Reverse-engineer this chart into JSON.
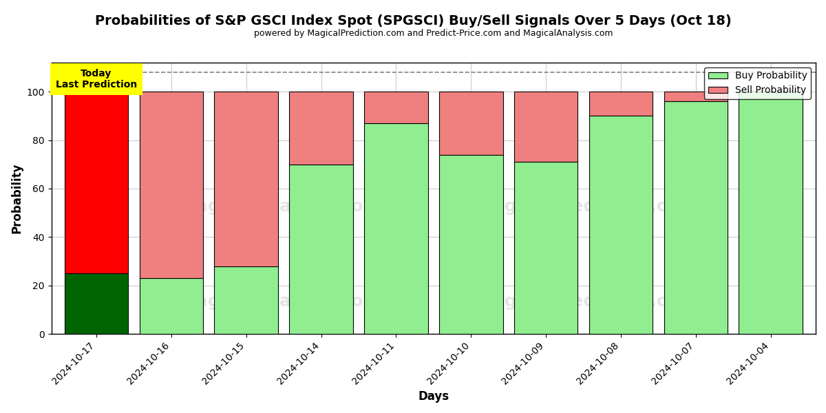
{
  "title": "Probabilities of S&P GSCI Index Spot (SPGSCI) Buy/Sell Signals Over 5 Days (Oct 18)",
  "subtitle": "powered by MagicalPrediction.com and Predict-Price.com and MagicalAnalysis.com",
  "xlabel": "Days",
  "ylabel": "Probability",
  "categories": [
    "2024-10-17",
    "2024-10-16",
    "2024-10-15",
    "2024-10-14",
    "2024-10-11",
    "2024-10-10",
    "2024-10-09",
    "2024-10-08",
    "2024-10-07",
    "2024-10-04"
  ],
  "buy_values": [
    25,
    23,
    28,
    70,
    87,
    74,
    71,
    90,
    96,
    100
  ],
  "sell_values": [
    75,
    77,
    72,
    30,
    13,
    26,
    29,
    10,
    4,
    0
  ],
  "today_buy_color": "#006400",
  "today_sell_color": "#FF0000",
  "buy_color": "#90EE90",
  "sell_color": "#F08080",
  "today_label": "Today\nLast Prediction",
  "today_label_bg": "#FFFF00",
  "legend_buy": "Buy Probability",
  "legend_sell": "Sell Probability",
  "ylim": [
    0,
    112
  ],
  "dashed_line_y": 108,
  "bar_edge_color": "black",
  "bar_edge_width": 0.8,
  "grid_color": "#cccccc",
  "background_color": "#ffffff"
}
